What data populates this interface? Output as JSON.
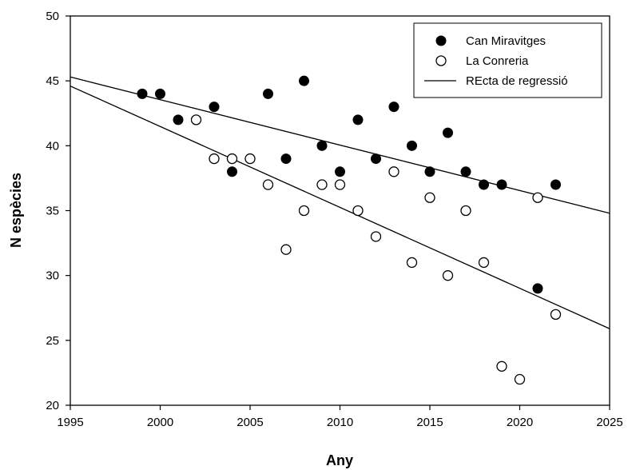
{
  "chart_data": {
    "type": "scatter",
    "title": "",
    "xlabel": "Any",
    "ylabel": "N espècies",
    "xlim": [
      1995,
      2025
    ],
    "ylim": [
      20,
      50
    ],
    "x_ticks": [
      "1995",
      "2000",
      "2005",
      "2010",
      "2015",
      "2020",
      "2025"
    ],
    "y_ticks": [
      "20",
      "25",
      "30",
      "35",
      "40",
      "45",
      "50"
    ],
    "grid": false,
    "legend_position": "top-right",
    "series": [
      {
        "name": "Can Miravitges",
        "marker": "filled-circle",
        "color": "#000000",
        "points": [
          [
            1999,
            44
          ],
          [
            2000,
            44
          ],
          [
            2001,
            42
          ],
          [
            2003,
            43
          ],
          [
            2004,
            38
          ],
          [
            2006,
            44
          ],
          [
            2007,
            39
          ],
          [
            2008,
            45
          ],
          [
            2009,
            40
          ],
          [
            2010,
            38
          ],
          [
            2011,
            42
          ],
          [
            2012,
            39
          ],
          [
            2013,
            43
          ],
          [
            2014,
            40
          ],
          [
            2015,
            38
          ],
          [
            2016,
            41
          ],
          [
            2017,
            38
          ],
          [
            2018,
            37
          ],
          [
            2019,
            37
          ],
          [
            2021,
            29
          ],
          [
            2022,
            37
          ]
        ]
      },
      {
        "name": "La Conreria",
        "marker": "open-circle",
        "color": "#000000",
        "points": [
          [
            2002,
            42
          ],
          [
            2003,
            39
          ],
          [
            2004,
            39
          ],
          [
            2005,
            39
          ],
          [
            2006,
            37
          ],
          [
            2007,
            32
          ],
          [
            2008,
            35
          ],
          [
            2009,
            37
          ],
          [
            2010,
            37
          ],
          [
            2011,
            35
          ],
          [
            2012,
            33
          ],
          [
            2013,
            38
          ],
          [
            2014,
            31
          ],
          [
            2015,
            36
          ],
          [
            2016,
            30
          ],
          [
            2017,
            35
          ],
          [
            2018,
            31
          ],
          [
            2019,
            23
          ],
          [
            2020,
            22
          ],
          [
            2021,
            36
          ],
          [
            2022,
            27
          ]
        ]
      }
    ],
    "regression_lines": {
      "name": "REcta de regressió",
      "lines": [
        {
          "points": [
            [
              1995,
              45.3
            ],
            [
              2025,
              34.8
            ]
          ]
        },
        {
          "points": [
            [
              1995,
              44.6
            ],
            [
              2025,
              25.9
            ]
          ]
        }
      ]
    }
  }
}
